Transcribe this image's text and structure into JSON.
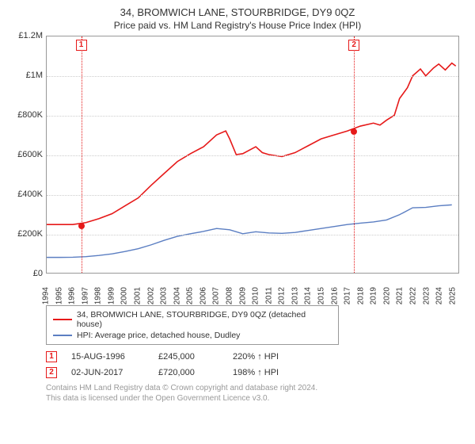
{
  "title": "34, BROMWICH LANE, STOURBRIDGE, DY9 0QZ",
  "subtitle": "Price paid vs. HM Land Registry's House Price Index (HPI)",
  "chart": {
    "type": "line",
    "xlim": [
      1994,
      2025.5
    ],
    "ylim": [
      0,
      1200000
    ],
    "ytick_step": 200000,
    "yticks": [
      {
        "v": 0,
        "label": "£0"
      },
      {
        "v": 200000,
        "label": "£200K"
      },
      {
        "v": 400000,
        "label": "£400K"
      },
      {
        "v": 600000,
        "label": "£600K"
      },
      {
        "v": 800000,
        "label": "£800K"
      },
      {
        "v": 1000000,
        "label": "£1M"
      },
      {
        "v": 1200000,
        "label": "£1.2M"
      }
    ],
    "xticks": [
      1994,
      1995,
      1996,
      1997,
      1998,
      1999,
      2000,
      2001,
      2002,
      2003,
      2004,
      2005,
      2006,
      2007,
      2008,
      2009,
      2010,
      2011,
      2012,
      2013,
      2014,
      2015,
      2016,
      2017,
      2018,
      2019,
      2020,
      2021,
      2022,
      2023,
      2024,
      2025
    ],
    "grid_color": "#cccccc",
    "border_color": "#999999",
    "background_color": "#ffffff",
    "series": [
      {
        "id": "property",
        "label": "34, BROMWICH LANE, STOURBRIDGE, DY9 0QZ (detached house)",
        "color": "#e61919",
        "line_width": 1.6,
        "data": [
          [
            1994,
            245000
          ],
          [
            1995,
            245000
          ],
          [
            1996,
            245000
          ],
          [
            1997,
            255000
          ],
          [
            1998,
            275000
          ],
          [
            1999,
            300000
          ],
          [
            2000,
            340000
          ],
          [
            2001,
            380000
          ],
          [
            2002,
            445000
          ],
          [
            2003,
            505000
          ],
          [
            2004,
            565000
          ],
          [
            2005,
            605000
          ],
          [
            2006,
            640000
          ],
          [
            2007,
            700000
          ],
          [
            2007.7,
            720000
          ],
          [
            2008,
            680000
          ],
          [
            2008.5,
            600000
          ],
          [
            2009,
            605000
          ],
          [
            2010,
            640000
          ],
          [
            2010.5,
            610000
          ],
          [
            2011,
            600000
          ],
          [
            2012,
            590000
          ],
          [
            2013,
            610000
          ],
          [
            2014,
            645000
          ],
          [
            2015,
            680000
          ],
          [
            2016,
            700000
          ],
          [
            2017,
            720000
          ],
          [
            2018,
            745000
          ],
          [
            2019,
            760000
          ],
          [
            2019.5,
            750000
          ],
          [
            2020,
            775000
          ],
          [
            2020.6,
            800000
          ],
          [
            2021,
            885000
          ],
          [
            2021.6,
            940000
          ],
          [
            2022,
            1000000
          ],
          [
            2022.6,
            1035000
          ],
          [
            2023,
            1000000
          ],
          [
            2023.6,
            1040000
          ],
          [
            2024,
            1060000
          ],
          [
            2024.5,
            1030000
          ],
          [
            2025,
            1065000
          ],
          [
            2025.3,
            1050000
          ]
        ]
      },
      {
        "id": "hpi",
        "label": "HPI: Average price, detached house, Dudley",
        "color": "#5b7ec2",
        "line_width": 1.4,
        "data": [
          [
            1994,
            78000
          ],
          [
            1995,
            78000
          ],
          [
            1996,
            79000
          ],
          [
            1997,
            82000
          ],
          [
            1998,
            88000
          ],
          [
            1999,
            96000
          ],
          [
            2000,
            108000
          ],
          [
            2001,
            122000
          ],
          [
            2002,
            142000
          ],
          [
            2003,
            165000
          ],
          [
            2004,
            185000
          ],
          [
            2005,
            198000
          ],
          [
            2006,
            210000
          ],
          [
            2007,
            225000
          ],
          [
            2008,
            218000
          ],
          [
            2009,
            198000
          ],
          [
            2010,
            208000
          ],
          [
            2011,
            202000
          ],
          [
            2012,
            200000
          ],
          [
            2013,
            205000
          ],
          [
            2014,
            215000
          ],
          [
            2015,
            225000
          ],
          [
            2016,
            235000
          ],
          [
            2017,
            245000
          ],
          [
            2018,
            252000
          ],
          [
            2019,
            258000
          ],
          [
            2020,
            268000
          ],
          [
            2021,
            295000
          ],
          [
            2022,
            330000
          ],
          [
            2023,
            332000
          ],
          [
            2024,
            340000
          ],
          [
            2025,
            345000
          ]
        ]
      }
    ],
    "markers": [
      {
        "n": "1",
        "x": 1996.63,
        "y": 245000
      },
      {
        "n": "2",
        "x": 2017.42,
        "y": 720000
      }
    ]
  },
  "legend": {
    "items": [
      {
        "color": "#e61919",
        "label": "34, BROMWICH LANE, STOURBRIDGE, DY9 0QZ (detached house)"
      },
      {
        "color": "#5b7ec2",
        "label": "HPI: Average price, detached house, Dudley"
      }
    ]
  },
  "events": [
    {
      "n": "1",
      "date": "15-AUG-1996",
      "price": "£245,000",
      "pct": "220% ↑ HPI"
    },
    {
      "n": "2",
      "date": "02-JUN-2017",
      "price": "£720,000",
      "pct": "198% ↑ HPI"
    }
  ],
  "footer": {
    "line1": "Contains HM Land Registry data © Crown copyright and database right 2024.",
    "line2": "This data is licensed under the Open Government Licence v3.0."
  }
}
